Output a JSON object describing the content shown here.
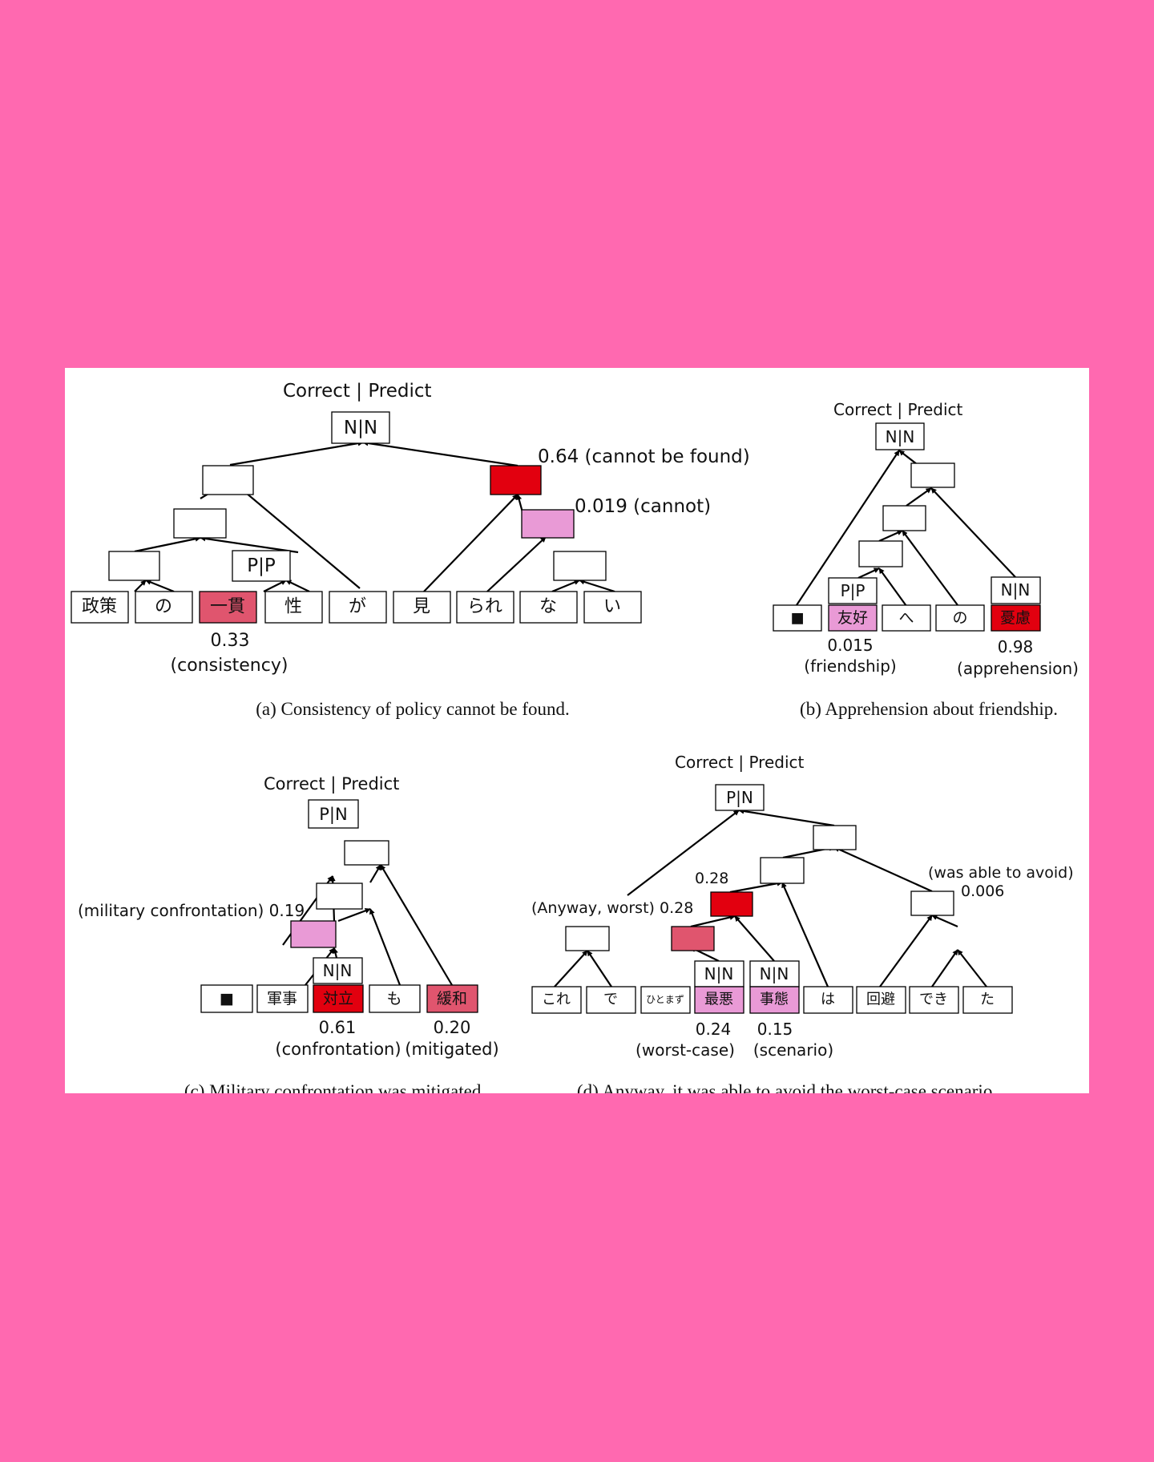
{
  "colors": {
    "page_background": "#ff69b0",
    "figure_background": "#ffffff",
    "strong_red": "#e2000f",
    "medium_red": "#e0556e",
    "light_pink": "#e99ad6"
  },
  "panels": {
    "a": {
      "header": "Correct | Predict",
      "root_label": "N|N",
      "node_pp": "P|P",
      "score_cannot_be_found": "0.64 (cannot be found)",
      "score_cannot": "0.019 (cannot)",
      "tokens": [
        "政策",
        "の",
        "一貫",
        "性",
        "が",
        "見",
        "られ",
        "な",
        "い"
      ],
      "score_consistency": "0.33",
      "gloss_consistency": "(consistency)",
      "caption": "(a) Consistency of policy cannot be found."
    },
    "b": {
      "header": "Correct | Predict",
      "root_label": "N|N",
      "node_pp": "P|P",
      "node_nn": "N|N",
      "tokens": [
        "■",
        "友好",
        "へ",
        "の",
        "憂慮"
      ],
      "score_friendship": "0.015",
      "gloss_friendship": "(friendship)",
      "score_apprehension": "0.98",
      "gloss_apprehension": "(apprehension)",
      "caption": "(b) Apprehension about friendship."
    },
    "c": {
      "header": "Correct | Predict",
      "root_label": "P|N",
      "node_nn": "N|N",
      "score_military": "(military confrontation)  0.19",
      "tokens": [
        "■",
        "軍事",
        "対立",
        "も",
        "緩和"
      ],
      "score_confrontation": "0.61",
      "gloss_confrontation": "(confrontation)",
      "score_mitigated": "0.20",
      "gloss_mitigated": "(mitigated)",
      "caption": "(c) Military confrontation was mitigated."
    },
    "d": {
      "header": "Correct | Predict",
      "root_label": "P|N",
      "node_nn_1": "N|N",
      "node_nn_2": "N|N",
      "score_top": "0.28",
      "score_anyway": "(Anyway, worst) 0.28",
      "gloss_avoid": "(was able to avoid)",
      "score_avoid": "0.006",
      "tokens": [
        "これ",
        "で",
        "ひとまず",
        "最悪",
        "事態",
        "は",
        "回避",
        "でき",
        "た"
      ],
      "score_worst": "0.24",
      "gloss_worst": "(worst-case)",
      "score_scenario": "0.15",
      "gloss_scenario": "(scenario)",
      "caption": "(d) Anyway, it was able to avoid the worst-case scenario."
    }
  }
}
